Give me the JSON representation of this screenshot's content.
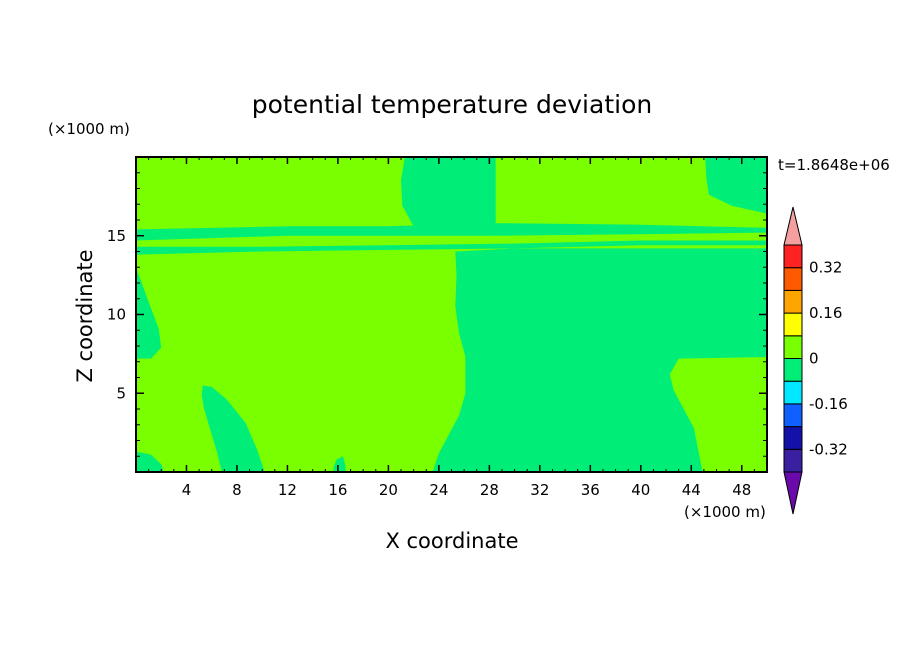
{
  "chart_data": {
    "type": "heatmap",
    "title": "potential temperature deviation",
    "xlabel": "X coordinate",
    "ylabel": "Z coordinate",
    "x_unit": "(×1000 m)",
    "y_unit": "(×1000 m)",
    "time_label": "t=1.8648e+06",
    "xlim": [
      0,
      50
    ],
    "ylim": [
      0,
      20
    ],
    "x_ticks": [
      4,
      8,
      12,
      16,
      20,
      24,
      28,
      32,
      36,
      40,
      44,
      48
    ],
    "y_ticks": [
      5,
      10,
      15
    ],
    "colorbar": {
      "levels": [
        -0.4,
        -0.32,
        -0.24,
        -0.16,
        -0.08,
        0,
        0.08,
        0.16,
        0.24,
        0.32,
        0.4
      ],
      "tick_labels": [
        "0.32",
        "0.16",
        "0",
        "-0.16",
        "-0.32"
      ],
      "tick_values": [
        0.32,
        0.16,
        0,
        -0.16,
        -0.32
      ],
      "colors": [
        "#3a1fa0",
        "#1212a8",
        "#1060ff",
        "#00e8ff",
        "#00ee78",
        "#7aff00",
        "#ffff00",
        "#ffa500",
        "#ff5a00",
        "#ff2222"
      ],
      "over_color": "#f4a0a0",
      "under_color": "#6a0aaa"
    },
    "field_colors": {
      "positive": "#7aff00",
      "negative": "#00ee78"
    },
    "regions": [
      {
        "category": "negative",
        "boundary": [
          [
            21.3,
            20
          ],
          [
            28.5,
            20
          ],
          [
            28.5,
            15.6
          ],
          [
            22,
            15.6
          ],
          [
            21.1,
            16.9
          ],
          [
            21.0,
            18.5
          ]
        ]
      },
      {
        "category": "negative",
        "boundary": [
          [
            45.1,
            20
          ],
          [
            50,
            20
          ],
          [
            50,
            16.4
          ],
          [
            47.2,
            16.9
          ],
          [
            45.4,
            17.6
          ],
          [
            45.2,
            18.6
          ]
        ]
      },
      {
        "category": "negative",
        "boundary": [
          [
            0,
            15.4
          ],
          [
            12,
            15.6
          ],
          [
            20,
            15.6
          ],
          [
            28,
            15.8
          ],
          [
            40,
            15.7
          ],
          [
            50,
            15.5
          ],
          [
            50,
            15.2
          ],
          [
            40,
            15.1
          ],
          [
            28,
            15.0
          ],
          [
            20,
            15.0
          ],
          [
            12,
            15.0
          ],
          [
            0,
            14.7
          ]
        ]
      },
      {
        "category": "negative",
        "boundary": [
          [
            0,
            14.3
          ],
          [
            10,
            14.3
          ],
          [
            20,
            14.4
          ],
          [
            30,
            14.5
          ],
          [
            40,
            14.7
          ],
          [
            50,
            14.7
          ],
          [
            50,
            14.4
          ],
          [
            40,
            14.4
          ],
          [
            30,
            14.2
          ],
          [
            20,
            14.1
          ],
          [
            10,
            14.0
          ],
          [
            0,
            13.8
          ]
        ]
      },
      {
        "category": "negative",
        "boundary": [
          [
            25.3,
            14.0
          ],
          [
            30,
            14.2
          ],
          [
            40,
            14.2
          ],
          [
            50,
            14.2
          ],
          [
            50,
            7.3
          ],
          [
            43,
            7.2
          ],
          [
            42.3,
            6.2
          ],
          [
            42.6,
            5.2
          ],
          [
            44.2,
            2.8
          ],
          [
            44.9,
            0
          ],
          [
            23.5,
            0
          ],
          [
            24.0,
            1.2
          ],
          [
            25.6,
            3.6
          ],
          [
            26.1,
            5.0
          ],
          [
            26.1,
            7.3
          ],
          [
            25.6,
            8.8
          ],
          [
            25.3,
            10.5
          ],
          [
            25.4,
            12.5
          ]
        ]
      },
      {
        "category": "negative",
        "boundary": [
          [
            0,
            13.0
          ],
          [
            0.9,
            11.0
          ],
          [
            1.8,
            9.1
          ],
          [
            2.0,
            7.9
          ],
          [
            1.2,
            7.2
          ],
          [
            0,
            7.2
          ]
        ]
      },
      {
        "category": "negative",
        "boundary": [
          [
            5.3,
            5.5
          ],
          [
            6.0,
            5.4
          ],
          [
            7.2,
            4.6
          ],
          [
            8.7,
            3.1
          ],
          [
            9.6,
            1.4
          ],
          [
            10.2,
            0
          ],
          [
            6.8,
            0
          ],
          [
            6.4,
            1.3
          ],
          [
            5.8,
            2.9
          ],
          [
            5.4,
            4.0
          ],
          [
            5.2,
            4.9
          ]
        ]
      },
      {
        "category": "negative",
        "boundary": [
          [
            15.9,
            0.8
          ],
          [
            16.4,
            1.0
          ],
          [
            16.6,
            0.4
          ],
          [
            16.6,
            0
          ],
          [
            15.6,
            0
          ],
          [
            15.7,
            0.4
          ]
        ]
      },
      {
        "category": "negative",
        "boundary": [
          [
            0,
            1.3
          ],
          [
            1.2,
            1.1
          ],
          [
            2.0,
            0.5
          ],
          [
            2.2,
            0
          ],
          [
            0,
            0
          ]
        ]
      }
    ]
  }
}
